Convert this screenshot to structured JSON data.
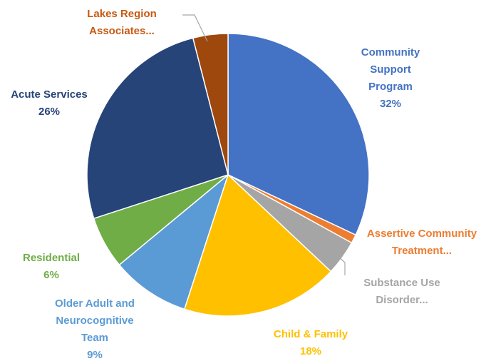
{
  "chart_data": {
    "type": "pie",
    "title": "",
    "start_angle_deg": 0,
    "slices": [
      {
        "name": "Community Support Program",
        "label_lines": [
          "Community",
          "Support",
          "Program"
        ],
        "value": 32,
        "value_label": "32%",
        "color": "#4472C4",
        "label_color": "#4472C4"
      },
      {
        "name": "Assertive Community Treatment...",
        "label_lines": [
          "Assertive Community",
          "Treatment..."
        ],
        "value": 1,
        "value_label": "",
        "color": "#ED7D31",
        "label_color": "#ED7D31"
      },
      {
        "name": "Substance Use Disorder...",
        "label_lines": [
          "Substance Use",
          "Disorder..."
        ],
        "value": 4,
        "value_label": "",
        "color": "#A5A5A5",
        "label_color": "#A5A5A5"
      },
      {
        "name": "Child & Family",
        "label_lines": [
          "Child & Family"
        ],
        "value": 18,
        "value_label": "18%",
        "color": "#FFC000",
        "label_color": "#FFC000"
      },
      {
        "name": "Older Adult and Neurocognitive Team",
        "label_lines": [
          "Older Adult and",
          "Neurocognitive",
          "Team"
        ],
        "value": 9,
        "value_label": "9%",
        "color": "#5B9BD5",
        "label_color": "#5B9BD5"
      },
      {
        "name": "Residential",
        "label_lines": [
          "Residential"
        ],
        "value": 6,
        "value_label": "6%",
        "color": "#70AD47",
        "label_color": "#70AD47"
      },
      {
        "name": "Acute Services",
        "label_lines": [
          "Acute Services"
        ],
        "value": 26,
        "value_label": "26%",
        "color": "#264478",
        "label_color": "#264478"
      },
      {
        "name": "Lakes Region Associates...",
        "label_lines": [
          "Lakes Region",
          "Associates..."
        ],
        "value": 4,
        "value_label": "",
        "color": "#9E480E",
        "label_color": "#C55A11"
      }
    ]
  }
}
